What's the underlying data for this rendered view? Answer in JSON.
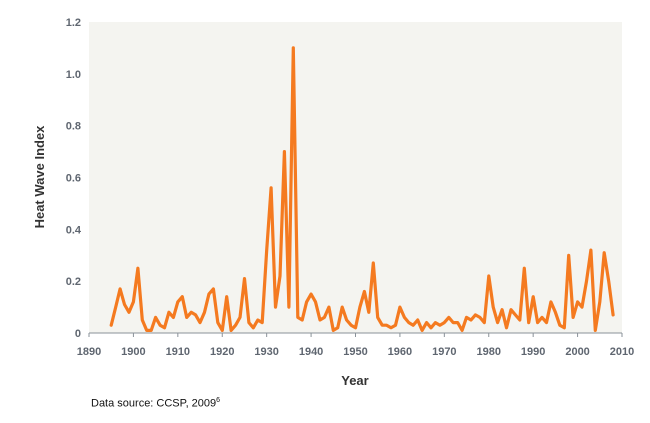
{
  "chart_data": {
    "type": "line",
    "title": "",
    "xlabel": "Year",
    "ylabel": "Heat Wave Index",
    "xlim": [
      1890,
      2010
    ],
    "ylim": [
      0,
      1.2
    ],
    "x_ticks": [
      1890,
      1900,
      1910,
      1920,
      1930,
      1940,
      1950,
      1960,
      1970,
      1980,
      1990,
      2000,
      2010
    ],
    "y_ticks": [
      "0",
      "0.2",
      "0.4",
      "0.6",
      "0.8",
      "1.0",
      "1.2"
    ],
    "grid": false,
    "legend": "none",
    "series": [
      {
        "name": "Heat Wave Index",
        "color": "#f47a20",
        "x": [
          1895,
          1896,
          1897,
          1898,
          1899,
          1900,
          1901,
          1902,
          1903,
          1904,
          1905,
          1906,
          1907,
          1908,
          1909,
          1910,
          1911,
          1912,
          1913,
          1914,
          1915,
          1916,
          1917,
          1918,
          1919,
          1920,
          1921,
          1922,
          1923,
          1924,
          1925,
          1926,
          1927,
          1928,
          1929,
          1930,
          1931,
          1932,
          1933,
          1934,
          1935,
          1936,
          1937,
          1938,
          1939,
          1940,
          1941,
          1942,
          1943,
          1944,
          1945,
          1946,
          1947,
          1948,
          1949,
          1950,
          1951,
          1952,
          1953,
          1954,
          1955,
          1956,
          1957,
          1958,
          1959,
          1960,
          1961,
          1962,
          1963,
          1964,
          1965,
          1966,
          1967,
          1968,
          1969,
          1970,
          1971,
          1972,
          1973,
          1974,
          1975,
          1976,
          1977,
          1978,
          1979,
          1980,
          1981,
          1982,
          1983,
          1984,
          1985,
          1986,
          1987,
          1988,
          1989,
          1990,
          1991,
          1992,
          1993,
          1994,
          1995,
          1996,
          1997,
          1998,
          1999,
          2000,
          2001,
          2002,
          2003,
          2004,
          2005,
          2006,
          2007,
          2008
        ],
        "values": [
          0.03,
          0.1,
          0.17,
          0.11,
          0.08,
          0.12,
          0.25,
          0.05,
          0.01,
          0.01,
          0.06,
          0.03,
          0.02,
          0.08,
          0.06,
          0.12,
          0.14,
          0.06,
          0.08,
          0.07,
          0.04,
          0.08,
          0.15,
          0.17,
          0.04,
          0.01,
          0.14,
          0.01,
          0.03,
          0.06,
          0.21,
          0.04,
          0.02,
          0.05,
          0.04,
          0.32,
          0.56,
          0.1,
          0.22,
          0.7,
          0.1,
          1.1,
          0.06,
          0.05,
          0.12,
          0.15,
          0.12,
          0.05,
          0.06,
          0.1,
          0.01,
          0.02,
          0.1,
          0.05,
          0.03,
          0.02,
          0.1,
          0.16,
          0.08,
          0.27,
          0.06,
          0.03,
          0.03,
          0.02,
          0.03,
          0.1,
          0.06,
          0.04,
          0.03,
          0.05,
          0.01,
          0.04,
          0.02,
          0.04,
          0.03,
          0.04,
          0.06,
          0.04,
          0.04,
          0.01,
          0.06,
          0.05,
          0.07,
          0.06,
          0.04,
          0.22,
          0.1,
          0.04,
          0.09,
          0.02,
          0.09,
          0.07,
          0.05,
          0.25,
          0.04,
          0.14,
          0.04,
          0.06,
          0.04,
          0.12,
          0.08,
          0.03,
          0.02,
          0.3,
          0.06,
          0.12,
          0.1,
          0.2,
          0.32,
          0.01,
          0.12,
          0.31,
          0.2,
          0.07
        ]
      }
    ]
  },
  "source_note": {
    "text": "Data source: CCSP, 2009",
    "footnote_mark": "6"
  }
}
